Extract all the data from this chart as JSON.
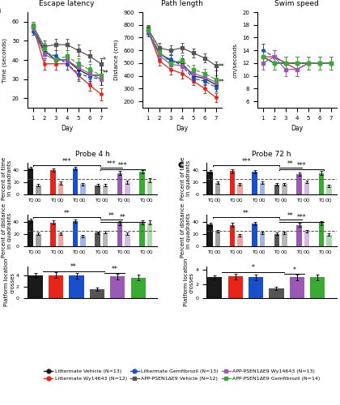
{
  "colors": {
    "lm_vehicle": "#1a1a1a",
    "lm_wy14643": "#e8251a",
    "lm_gemfibrozil": "#1a4fcc",
    "app_vehicle": "#555555",
    "app_wy14643": "#9b59b6",
    "app_gemfibrozil": "#3aaa35"
  },
  "legend_labels": [
    "Littermate Vehicle (N=13)",
    "Littermate Wy14643 (N=12)",
    "Littermate Gemfibrozil (N=13)",
    "APP-PSEN1ΔE9 Vehicle (N=12)",
    "APP-PSEN1ΔE9 Wy14643 (N=13)",
    "APP-PSEN1ΔE9 Gemfibrozil (N=14)"
  ],
  "escape_latency": {
    "days": [
      1,
      2,
      3,
      4,
      5,
      6,
      7
    ],
    "lm_vehicle": [
      57,
      45,
      40,
      40,
      35,
      32,
      32
    ],
    "lm_wy14643": [
      58,
      38,
      38,
      38,
      32,
      27,
      22
    ],
    "lm_gemfibrozil": [
      55,
      44,
      42,
      38,
      33,
      31,
      30
    ],
    "app_vehicle": [
      58,
      47,
      48,
      48,
      45,
      42,
      38
    ],
    "app_wy14643": [
      57,
      43,
      40,
      40,
      36,
      33,
      30
    ],
    "app_gemfibrozil": [
      58,
      46,
      40,
      42,
      38,
      35,
      32
    ],
    "lm_vehicle_err": [
      2,
      3,
      3,
      3,
      3,
      3,
      3
    ],
    "lm_wy14643_err": [
      2,
      3,
      3,
      3,
      3,
      3,
      3
    ],
    "lm_gemfibrozil_err": [
      2,
      3,
      3,
      3,
      3,
      3,
      3
    ],
    "app_vehicle_err": [
      2,
      3,
      3,
      3,
      3,
      3,
      3
    ],
    "app_wy14643_err": [
      2,
      3,
      3,
      3,
      3,
      3,
      3
    ],
    "app_gemfibrozil_err": [
      2,
      3,
      3,
      3,
      3,
      3,
      3
    ]
  },
  "path_length": {
    "days": [
      1,
      2,
      3,
      4,
      5,
      6,
      7
    ],
    "lm_vehicle": [
      750,
      580,
      520,
      500,
      400,
      380,
      330
    ],
    "lm_wy14643": [
      760,
      520,
      450,
      420,
      360,
      300,
      230
    ],
    "lm_gemfibrozil": [
      740,
      570,
      530,
      480,
      380,
      360,
      310
    ],
    "app_vehicle": [
      770,
      620,
      600,
      620,
      580,
      540,
      480
    ],
    "app_wy14643": [
      755,
      560,
      490,
      480,
      420,
      390,
      350
    ],
    "app_gemfibrozil": [
      760,
      590,
      500,
      520,
      450,
      420,
      370
    ],
    "lm_vehicle_err": [
      30,
      40,
      40,
      40,
      35,
      35,
      35
    ],
    "lm_wy14643_err": [
      30,
      40,
      40,
      40,
      35,
      35,
      35
    ],
    "lm_gemfibrozil_err": [
      30,
      40,
      40,
      40,
      35,
      35,
      35
    ],
    "app_vehicle_err": [
      30,
      40,
      40,
      40,
      35,
      35,
      35
    ],
    "app_wy14643_err": [
      30,
      40,
      40,
      40,
      35,
      35,
      35
    ],
    "app_gemfibrozil_err": [
      30,
      40,
      40,
      40,
      35,
      35,
      35
    ]
  },
  "swim_speed": {
    "days": [
      1,
      2,
      3,
      4,
      5,
      6,
      7
    ],
    "lm_vehicle": [
      13,
      12,
      12,
      12,
      12,
      12,
      12
    ],
    "lm_wy14643": [
      13,
      13,
      12,
      11,
      12,
      12,
      12
    ],
    "lm_gemfibrozil": [
      14,
      13,
      12,
      12,
      12,
      12,
      12
    ],
    "app_vehicle": [
      13,
      12,
      12,
      12,
      12,
      12,
      12
    ],
    "app_wy14643": [
      12,
      13,
      11,
      11,
      12,
      12,
      12
    ],
    "app_gemfibrozil": [
      13,
      12,
      12,
      12,
      12,
      12,
      12
    ],
    "lm_vehicle_err": [
      1,
      1,
      1,
      1,
      1,
      1,
      1
    ],
    "lm_wy14643_err": [
      1,
      1,
      1,
      1,
      1,
      1,
      1
    ],
    "lm_gemfibrozil_err": [
      1,
      1,
      1,
      1,
      1,
      1,
      1
    ],
    "app_vehicle_err": [
      1,
      1,
      1,
      1,
      1,
      1,
      1
    ],
    "app_wy14643_err": [
      1,
      1,
      1,
      1,
      1,
      1,
      1
    ],
    "app_gemfibrozil_err": [
      1,
      1,
      1,
      1,
      1,
      1,
      1
    ]
  },
  "probe4h_time": {
    "TQ": [
      42,
      40,
      42,
      15,
      35,
      37
    ],
    "OQ": [
      15,
      18,
      17,
      15,
      20,
      23
    ],
    "TQ_err": [
      2.5,
      3,
      2.5,
      2,
      3,
      3
    ],
    "OQ_err": [
      2,
      2.5,
      2,
      2,
      2.5,
      3
    ],
    "dashed_line": 25
  },
  "probe4h_distance": {
    "TQ": [
      42,
      39,
      41,
      22,
      38,
      39
    ],
    "OQ": [
      20,
      21,
      17,
      23,
      20,
      39
    ],
    "TQ_err": [
      3,
      3,
      3,
      2,
      3,
      3
    ],
    "OQ_err": [
      2,
      2,
      2,
      2,
      2,
      3
    ],
    "dashed_line": 25
  },
  "probe4h_crosses": {
    "values": [
      4.0,
      4.0,
      3.9,
      1.6,
      3.8,
      3.6
    ],
    "err": [
      0.4,
      0.5,
      0.5,
      0.3,
      0.5,
      0.5
    ]
  },
  "probe72h_time": {
    "TQ": [
      37,
      38,
      37,
      16,
      33,
      35
    ],
    "OQ": [
      19,
      17,
      19,
      17,
      20,
      14
    ],
    "TQ_err": [
      2.5,
      3,
      2.5,
      2,
      3,
      3
    ],
    "OQ_err": [
      2,
      2,
      2,
      2,
      2,
      2
    ],
    "dashed_line": 25
  },
  "probe72h_distance": {
    "TQ": [
      36,
      35,
      37,
      20,
      35,
      38
    ],
    "OQ": [
      24,
      18,
      22,
      22,
      25,
      19
    ],
    "TQ_err": [
      2.5,
      3,
      2.5,
      2,
      3,
      3
    ],
    "OQ_err": [
      2,
      2,
      2,
      2,
      2,
      2
    ],
    "dashed_line": 25
  },
  "probe72h_crosses": {
    "values": [
      3.0,
      3.1,
      3.0,
      1.4,
      3.0,
      3.0
    ],
    "err": [
      0.3,
      0.4,
      0.4,
      0.2,
      0.4,
      0.4
    ]
  }
}
